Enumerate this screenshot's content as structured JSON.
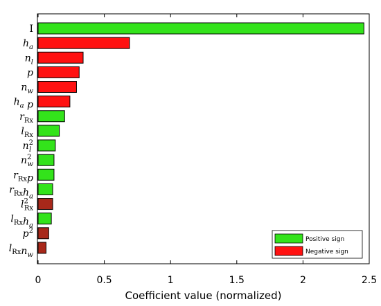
{
  "chart_data": {
    "type": "bar",
    "orientation": "horizontal",
    "xlabel": "Coefficient value (normalized)",
    "ylabel": "",
    "xlim": [
      0,
      2.5
    ],
    "xticks": [
      "0",
      "0.5",
      "1",
      "1.5",
      "2",
      "2.5"
    ],
    "grid": false,
    "legend_position": "bottom-right",
    "categories": [
      {
        "base": "I",
        "sup": "",
        "sub": ""
      },
      {
        "base": "h",
        "sup": "",
        "sub": "a"
      },
      {
        "base": "n",
        "sup": "",
        "sub": "l"
      },
      {
        "base": "p",
        "sup": "",
        "sub": ""
      },
      {
        "base": "n",
        "sup": "",
        "sub": "w"
      },
      {
        "base": "h",
        "sup": "",
        "sub": "a",
        "tail": " p"
      },
      {
        "base": "r",
        "sup": "",
        "sub": "Rx"
      },
      {
        "base": "l",
        "sup": "",
        "sub": "Rx"
      },
      {
        "base": "n",
        "sup": "2",
        "sub": "l"
      },
      {
        "base": "n",
        "sup": "2",
        "sub": "w"
      },
      {
        "base": "r",
        "sup": "",
        "sub": "Rx",
        "tail": "p"
      },
      {
        "base": "r",
        "sup": "",
        "sub": "Rx",
        "tail": "h",
        "tailsub": "a"
      },
      {
        "base": "l",
        "sup": "2",
        "sub": "Rx"
      },
      {
        "base": "l",
        "sup": "",
        "sub": "Rx",
        "tail": "h",
        "tailsub": "a"
      },
      {
        "base": "p",
        "sup": "2",
        "sub": ""
      },
      {
        "base": "l",
        "sup": "",
        "sub": "Rx",
        "tail": "n",
        "tailsub": "w"
      }
    ],
    "values": [
      2.46,
      0.69,
      0.34,
      0.31,
      0.29,
      0.24,
      0.2,
      0.16,
      0.13,
      0.12,
      0.12,
      0.11,
      0.11,
      0.1,
      0.08,
      0.06
    ],
    "signs": [
      "positive",
      "negative",
      "negative",
      "negative",
      "negative",
      "negative",
      "positive",
      "positive",
      "positive",
      "positive",
      "positive",
      "positive",
      "negative",
      "positive",
      "negative",
      "negative"
    ],
    "series": [
      {
        "name": "Positive sign",
        "color": "#33e31b"
      },
      {
        "name": "Negative sign",
        "color": "#ff1111"
      }
    ]
  },
  "colors": {
    "positive": "#33e31b",
    "negative": "#ff1111",
    "negative_dark": "#a8281a",
    "axis": "#000000"
  }
}
